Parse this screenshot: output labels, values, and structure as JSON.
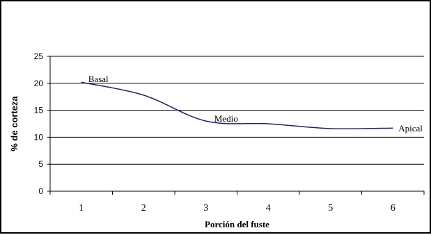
{
  "chart_data": {
    "type": "line",
    "title": "",
    "xlabel": "Porción del fuste",
    "ylabel": "% de corteza",
    "x": [
      1,
      2,
      3,
      4,
      5,
      6
    ],
    "x_tick_labels": [
      "1",
      "2",
      "3",
      "4",
      "5",
      "6"
    ],
    "y_ticks": [
      0,
      5,
      10,
      15,
      20,
      25
    ],
    "ylim": [
      0,
      25
    ],
    "xlim": [
      0.5,
      6.5
    ],
    "grid": "horizontal",
    "legend": "none",
    "series": [
      {
        "values": [
          20.2,
          17.8,
          13.0,
          12.5,
          11.6,
          11.7
        ],
        "color": "#1f1f7a"
      }
    ],
    "annotations": [
      {
        "text": "Basal",
        "x": 1,
        "y": 20.2
      },
      {
        "text": "Medio",
        "x": 3,
        "y": 13.0
      },
      {
        "text": "Apical",
        "x": 6,
        "y": 11.7
      }
    ]
  }
}
